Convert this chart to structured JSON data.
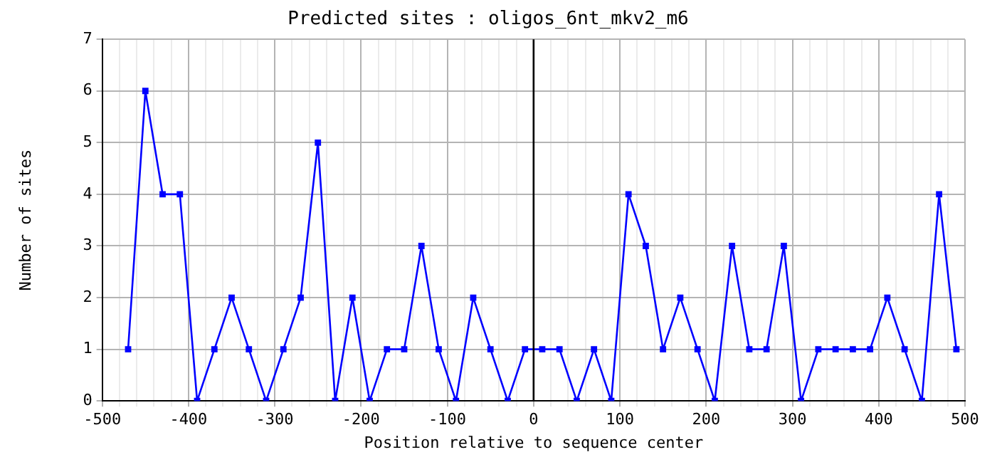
{
  "chart_data": {
    "type": "line",
    "title": "Predicted sites : oligos_6nt_mkv2_m6",
    "xlabel": "Position relative to sequence center",
    "ylabel": "Number of sites",
    "x": [
      -470,
      -450,
      -430,
      -410,
      -390,
      -370,
      -350,
      -330,
      -310,
      -290,
      -270,
      -250,
      -230,
      -210,
      -190,
      -170,
      -150,
      -130,
      -110,
      -90,
      -70,
      -50,
      -30,
      -10,
      10,
      30,
      50,
      70,
      90,
      110,
      130,
      150,
      170,
      190,
      210,
      230,
      250,
      270,
      290,
      310,
      330,
      350,
      370,
      390,
      410,
      430,
      450,
      470,
      490
    ],
    "series": [
      {
        "color": "#0000ff",
        "values": [
          1,
          6,
          4,
          4,
          0,
          1,
          2,
          1,
          0,
          1,
          2,
          5,
          0,
          2,
          0,
          1,
          1,
          3,
          1,
          0,
          2,
          1,
          0,
          1,
          1,
          1,
          0,
          1,
          0,
          4,
          3,
          1,
          2,
          1,
          0,
          3,
          1,
          1,
          3,
          0,
          1,
          1,
          1,
          1,
          2,
          1,
          0,
          4,
          1
        ]
      }
    ],
    "xlim": [
      -500,
      500
    ],
    "xticks": [
      -500,
      {
        "value": -480,
        "label": null
      },
      {
        "value": -460,
        "label": null
      },
      {
        "value": -440,
        "label": null
      },
      {
        "value": -420,
        "label": null
      },
      -400,
      {
        "value": -380,
        "label": null
      },
      {
        "value": -360,
        "label": null
      },
      {
        "value": -340,
        "label": null
      },
      {
        "value": -320,
        "label": null
      },
      -300,
      {
        "value": -280,
        "label": null
      },
      {
        "value": -260,
        "label": null
      },
      {
        "value": -240,
        "label": null
      },
      {
        "value": -220,
        "label": null
      },
      -200,
      {
        "value": -180,
        "label": null
      },
      {
        "value": -160,
        "label": null
      },
      {
        "value": -140,
        "label": null
      },
      {
        "value": -120,
        "label": null
      },
      -100,
      {
        "value": -80,
        "label": null
      },
      {
        "value": -60,
        "label": null
      },
      {
        "value": -40,
        "label": null
      },
      {
        "value": -20,
        "label": null
      },
      0,
      {
        "value": 20,
        "label": null
      },
      {
        "value": 40,
        "label": null
      },
      {
        "value": 60,
        "label": null
      },
      {
        "value": 80,
        "label": null
      },
      100,
      {
        "value": 120,
        "label": null
      },
      {
        "value": 140,
        "label": null
      },
      {
        "value": 160,
        "label": null
      },
      {
        "value": 180,
        "label": null
      },
      200,
      {
        "value": 220,
        "label": null
      },
      {
        "value": 240,
        "label": null
      },
      {
        "value": 260,
        "label": null
      },
      {
        "value": 280,
        "label": null
      },
      300,
      {
        "value": 320,
        "label": null
      },
      {
        "value": 340,
        "label": null
      },
      {
        "value": 360,
        "label": null
      },
      {
        "value": 380,
        "label": null
      },
      400,
      {
        "value": 420,
        "label": null
      },
      {
        "value": 440,
        "label": null
      },
      {
        "value": 460,
        "label": null
      },
      {
        "value": 480,
        "label": null
      },
      500
    ],
    "ylim": [
      0,
      7
    ],
    "yticks": [
      0,
      1,
      2,
      3,
      4,
      5,
      6,
      7
    ],
    "ref_lines": [
      {
        "axis": "x",
        "value": 0,
        "color": "#000000"
      }
    ],
    "grid": true,
    "marker": "square",
    "line_style": "solid",
    "legend": false
  }
}
